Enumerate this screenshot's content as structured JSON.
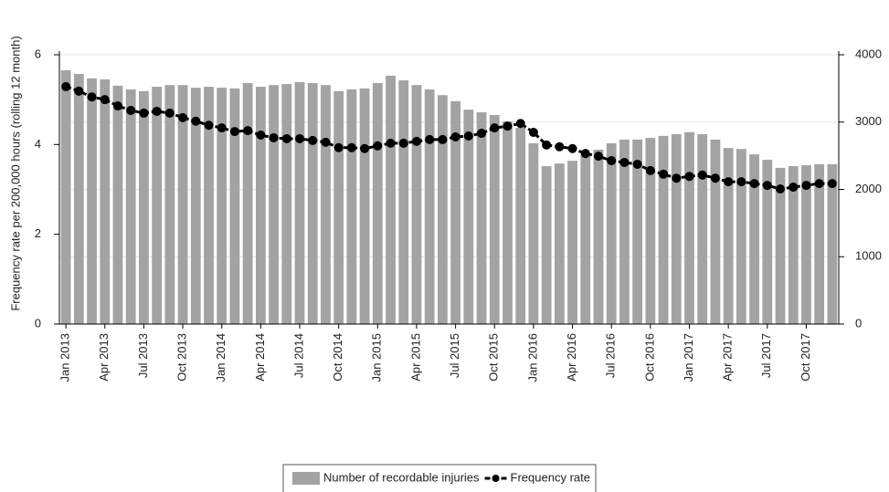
{
  "chart_data": {
    "type": "bar-line",
    "y_label": "Frequency rate per 200,000 hours (rolling 12 month)",
    "categories": [
      "Jan 2013",
      null,
      null,
      "Apr 2013",
      null,
      null,
      "Jul 2013",
      null,
      null,
      "Oct 2013",
      null,
      null,
      "Jan 2014",
      null,
      null,
      "Apr 2014",
      null,
      null,
      "Jul 2014",
      null,
      null,
      "Oct 2014",
      null,
      null,
      "Jan 2015",
      null,
      null,
      "Apr 2015",
      null,
      null,
      "Jul 2015",
      null,
      null,
      "Oct 2015",
      null,
      null,
      "Jan 2016",
      null,
      null,
      "Apr 2016",
      null,
      null,
      "Jul 2016",
      null,
      null,
      "Oct 2016",
      null,
      null,
      "Jan 2017",
      null,
      null,
      "Apr 2017",
      null,
      null,
      "Jul 2017",
      null,
      null,
      "Oct 2017",
      null,
      null
    ],
    "series": [
      {
        "name": "Number of recordable injuries",
        "type": "bar",
        "axis": "y2",
        "color": "#a3a3a3",
        "values": [
          3770,
          3715,
          3650,
          3635,
          3540,
          3485,
          3460,
          3525,
          3550,
          3550,
          3510,
          3525,
          3510,
          3500,
          3580,
          3525,
          3550,
          3565,
          3595,
          3580,
          3550,
          3460,
          3485,
          3500,
          3580,
          3690,
          3620,
          3550,
          3485,
          3400,
          3310,
          3185,
          3145,
          3105,
          3010,
          2915,
          2685,
          2345,
          2385,
          2425,
          2520,
          2590,
          2685,
          2740,
          2740,
          2765,
          2795,
          2820,
          2850,
          2820,
          2740,
          2615,
          2600,
          2520,
          2440,
          2320,
          2345,
          2360,
          2375,
          2375
        ]
      },
      {
        "name": "Frequency rate",
        "type": "line",
        "axis": "y",
        "color": "#000000",
        "values": [
          5.29,
          5.19,
          5.06,
          5.0,
          4.86,
          4.76,
          4.7,
          4.74,
          4.7,
          4.6,
          4.52,
          4.43,
          4.37,
          4.29,
          4.31,
          4.21,
          4.15,
          4.13,
          4.13,
          4.09,
          4.05,
          3.93,
          3.93,
          3.91,
          3.97,
          4.03,
          4.03,
          4.07,
          4.11,
          4.11,
          4.17,
          4.19,
          4.25,
          4.37,
          4.41,
          4.47,
          4.27,
          3.99,
          3.95,
          3.91,
          3.8,
          3.74,
          3.64,
          3.6,
          3.56,
          3.42,
          3.34,
          3.25,
          3.29,
          3.32,
          3.25,
          3.17,
          3.17,
          3.13,
          3.09,
          3.01,
          3.05,
          3.09,
          3.13,
          3.13
        ]
      }
    ],
    "ylim": [
      0,
      6
    ],
    "yticks": [
      0,
      2,
      4,
      6
    ],
    "y2lim": [
      0,
      4000
    ],
    "y2ticks": [
      0,
      1000,
      2000,
      3000,
      4000
    ],
    "grid": true,
    "legend": "bottom"
  }
}
